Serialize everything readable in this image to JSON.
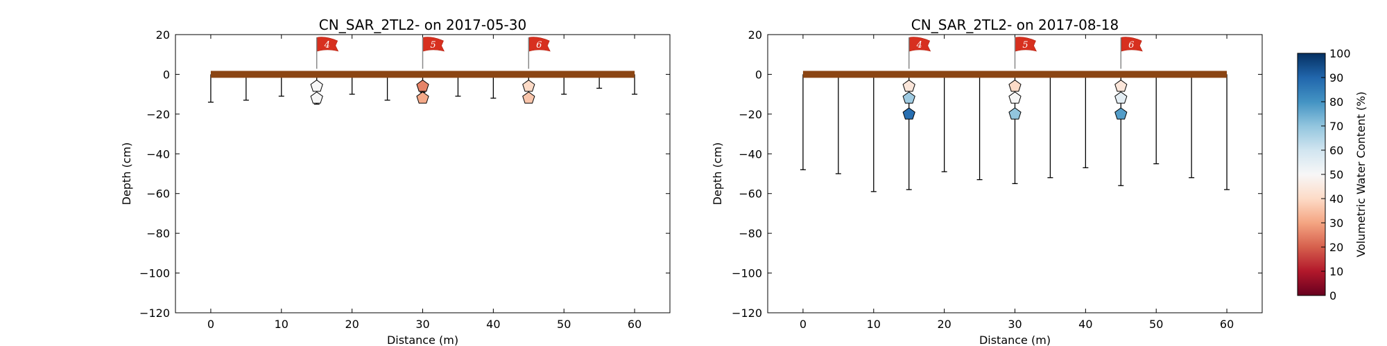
{
  "chart_data": [
    {
      "type": "scatter",
      "title": "CN_SAR_2TL2-  on 2017-05-30",
      "xlabel": "Distance (m)",
      "ylabel": "Depth (cm)",
      "xlim": [
        -5,
        65
      ],
      "ylim": [
        -120,
        20
      ],
      "xticks": [
        "0",
        "10",
        "20",
        "30",
        "40",
        "50",
        "60"
      ],
      "yticks": [
        "20",
        "0",
        "−20",
        "−40",
        "−60",
        "−80",
        "−100",
        "−120"
      ],
      "surface": {
        "x_start": 0,
        "x_end": 60,
        "depth": 0,
        "color": "#8b4513"
      },
      "probes": [
        {
          "x": 0,
          "depth": -14
        },
        {
          "x": 5,
          "depth": -13
        },
        {
          "x": 10,
          "depth": -11
        },
        {
          "x": 15,
          "depth": -15
        },
        {
          "x": 20,
          "depth": -10
        },
        {
          "x": 25,
          "depth": -13
        },
        {
          "x": 30,
          "depth": -9
        },
        {
          "x": 35,
          "depth": -11
        },
        {
          "x": 40,
          "depth": -12
        },
        {
          "x": 45,
          "depth": -10
        },
        {
          "x": 50,
          "depth": -10
        },
        {
          "x": 55,
          "depth": -7
        },
        {
          "x": 60,
          "depth": -10
        }
      ],
      "flags": [
        {
          "x": 15,
          "label": "4"
        },
        {
          "x": 30,
          "label": "5"
        },
        {
          "x": 45,
          "label": "6"
        }
      ],
      "sensors": [
        {
          "x": 15,
          "depth": -6,
          "vwc": 50
        },
        {
          "x": 15,
          "depth": -12,
          "vwc": 50
        },
        {
          "x": 30,
          "depth": -6,
          "vwc": 25
        },
        {
          "x": 30,
          "depth": -12,
          "vwc": 31
        },
        {
          "x": 45,
          "depth": -6,
          "vwc": 40
        },
        {
          "x": 45,
          "depth": -12,
          "vwc": 36
        }
      ]
    },
    {
      "type": "scatter",
      "title": "CN_SAR_2TL2-  on 2017-08-18",
      "xlabel": "Distance (m)",
      "ylabel": "Depth (cm)",
      "xlim": [
        -5,
        65
      ],
      "ylim": [
        -120,
        20
      ],
      "xticks": [
        "−10",
        "0",
        "10",
        "20",
        "30",
        "40",
        "50",
        "60"
      ],
      "yticks": [
        "20",
        "0",
        "−20",
        "−40",
        "−60",
        "−80",
        "−100",
        "−120"
      ],
      "surface": {
        "x_start": 0,
        "x_end": 60,
        "depth": 0,
        "color": "#8b4513"
      },
      "probes": [
        {
          "x": 0,
          "depth": -48
        },
        {
          "x": 5,
          "depth": -50
        },
        {
          "x": 10,
          "depth": -59
        },
        {
          "x": 15,
          "depth": -58
        },
        {
          "x": 20,
          "depth": -49
        },
        {
          "x": 25,
          "depth": -53
        },
        {
          "x": 30,
          "depth": -55
        },
        {
          "x": 35,
          "depth": -52
        },
        {
          "x": 40,
          "depth": -47
        },
        {
          "x": 45,
          "depth": -56
        },
        {
          "x": 50,
          "depth": -45
        },
        {
          "x": 55,
          "depth": -52
        },
        {
          "x": 60,
          "depth": -58
        }
      ],
      "flags": [
        {
          "x": 15,
          "label": "4"
        },
        {
          "x": 30,
          "label": "5"
        },
        {
          "x": 45,
          "label": "6"
        }
      ],
      "sensors": [
        {
          "x": 15,
          "depth": -6,
          "vwc": 44
        },
        {
          "x": 15,
          "depth": -12,
          "vwc": 68
        },
        {
          "x": 15,
          "depth": -20,
          "vwc": 88
        },
        {
          "x": 30,
          "depth": -6,
          "vwc": 40
        },
        {
          "x": 30,
          "depth": -12,
          "vwc": 50
        },
        {
          "x": 30,
          "depth": -20,
          "vwc": 70
        },
        {
          "x": 45,
          "depth": -6,
          "vwc": 44
        },
        {
          "x": 45,
          "depth": -12,
          "vwc": 55
        },
        {
          "x": 45,
          "depth": -20,
          "vwc": 78
        }
      ]
    }
  ],
  "colorbar": {
    "label": "Volumetric Water Content (%)",
    "min": 0,
    "max": 100,
    "ticks": [
      "0",
      "10",
      "20",
      "30",
      "40",
      "50",
      "60",
      "70",
      "80",
      "90",
      "100"
    ],
    "colormap": "RdBu",
    "stops": [
      "#67001f",
      "#b2182b",
      "#d6604d",
      "#f4a582",
      "#fddbc7",
      "#f7f7f7",
      "#d1e5f0",
      "#92c5de",
      "#4393c3",
      "#2166ac",
      "#053061"
    ]
  }
}
